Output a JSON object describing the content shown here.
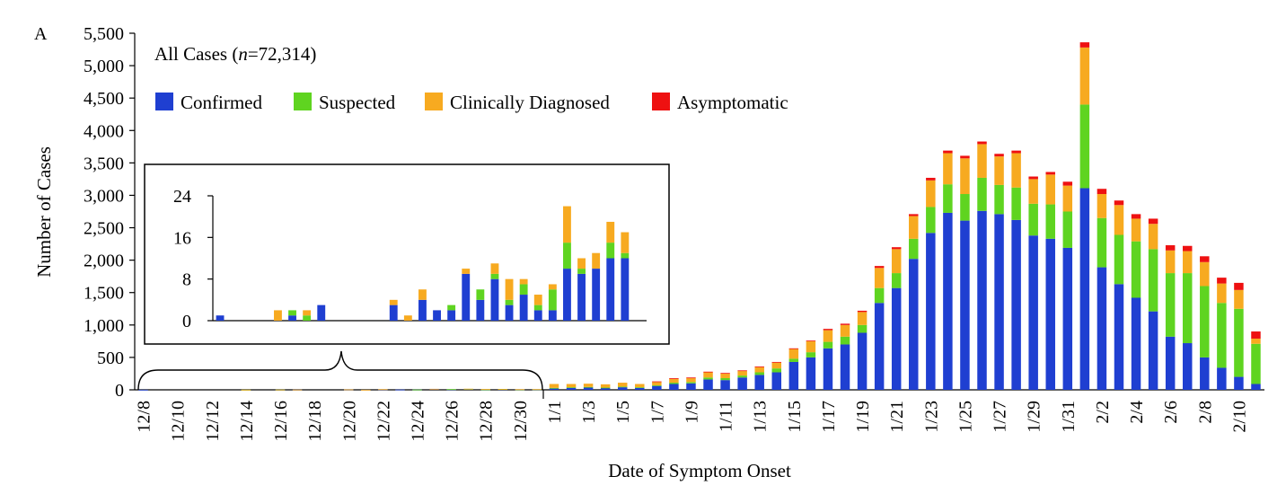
{
  "panel_label": "A",
  "annotation": {
    "prefix": "All Cases (",
    "n_italic": "n",
    "suffix": "=72,314)"
  },
  "colors": {
    "Confirmed": "#1f3fd1",
    "Suspected": "#5fd420",
    "Clinically Diagnosed": "#f7aa20",
    "Asymptomatic": "#ee1111"
  },
  "chart_data": [
    {
      "type": "bar",
      "stacked": true,
      "xlabel": "Date of Symptom Onset",
      "ylabel": "Number of Cases",
      "ylim": [
        0,
        5500
      ],
      "yticks": [
        "0",
        "500",
        "1,000",
        "1,500",
        "2,000",
        "2,500",
        "3,000",
        "3,500",
        "4,000",
        "4,500",
        "5,000",
        "5,500"
      ],
      "legend": {
        "placement": "top-left",
        "entries": [
          "Confirmed",
          "Suspected",
          "Clinically Diagnosed",
          "Asymptomatic"
        ]
      },
      "categories": [
        "12/8",
        "12/9",
        "12/10",
        "12/11",
        "12/12",
        "12/13",
        "12/14",
        "12/15",
        "12/16",
        "12/17",
        "12/18",
        "12/19",
        "12/20",
        "12/21",
        "12/22",
        "12/23",
        "12/24",
        "12/25",
        "12/26",
        "12/27",
        "12/28",
        "12/29",
        "12/30",
        "12/31",
        "1/1",
        "1/2",
        "1/3",
        "1/4",
        "1/5",
        "1/6",
        "1/7",
        "1/8",
        "1/9",
        "1/10",
        "1/11",
        "1/12",
        "1/13",
        "1/14",
        "1/15",
        "1/16",
        "1/17",
        "1/18",
        "1/19",
        "1/20",
        "1/21",
        "1/22",
        "1/23",
        "1/24",
        "1/25",
        "1/26",
        "1/27",
        "1/28",
        "1/29",
        "1/30",
        "1/31",
        "2/1",
        "2/2",
        "2/3",
        "2/4",
        "2/5",
        "2/6",
        "2/7",
        "2/8",
        "2/9",
        "2/10",
        "2/11"
      ],
      "tick_labels": [
        "12/8",
        "12/10",
        "12/12",
        "12/14",
        "12/16",
        "12/18",
        "12/20",
        "12/22",
        "12/24",
        "12/26",
        "12/28",
        "12/30",
        "1/1",
        "1/3",
        "1/5",
        "1/7",
        "1/9",
        "1/11",
        "1/13",
        "1/15",
        "1/17",
        "1/19",
        "1/21",
        "1/23",
        "1/25",
        "1/27",
        "1/29",
        "1/31",
        "2/2",
        "2/4",
        "2/6",
        "2/8",
        "2/10"
      ],
      "series": [
        {
          "name": "Confirmed",
          "values": [
            1,
            0,
            0,
            0,
            0,
            0,
            0,
            0,
            1,
            2,
            0,
            0,
            5,
            0,
            7,
            4,
            3,
            14,
            7,
            13,
            5,
            9,
            4,
            4,
            20,
            30,
            35,
            30,
            40,
            30,
            60,
            90,
            100,
            160,
            150,
            190,
            230,
            270,
            430,
            500,
            640,
            700,
            880,
            1340,
            1570,
            2020,
            2420,
            2730,
            2610,
            2760,
            2710,
            2620,
            2380,
            2330,
            2190,
            3110,
            1890,
            1630,
            1420,
            1210,
            820,
            720,
            500,
            340,
            200,
            90
          ]
        },
        {
          "name": "Suspected",
          "values": [
            0,
            0,
            0,
            0,
            0,
            0,
            1,
            0,
            1,
            0,
            0,
            0,
            0,
            0,
            0,
            0,
            1,
            0,
            3,
            1,
            1,
            2,
            2,
            4,
            10,
            10,
            10,
            5,
            10,
            10,
            10,
            20,
            20,
            30,
            30,
            30,
            40,
            60,
            50,
            80,
            100,
            120,
            120,
            230,
            230,
            310,
            400,
            440,
            410,
            510,
            450,
            500,
            490,
            530,
            560,
            1290,
            760,
            760,
            870,
            960,
            980,
            1080,
            1100,
            1000,
            1050,
            620
          ]
        },
        {
          "name": "Clinically Diagnosed",
          "values": [
            0,
            0,
            0,
            0,
            0,
            0,
            1,
            0,
            1,
            1,
            0,
            0,
            1,
            1,
            2,
            0,
            0,
            1,
            0,
            3,
            6,
            2,
            3,
            1,
            60,
            50,
            50,
            50,
            60,
            50,
            50,
            60,
            60,
            80,
            70,
            70,
            80,
            90,
            150,
            170,
            180,
            180,
            200,
            310,
            370,
            350,
            410,
            480,
            550,
            520,
            440,
            530,
            380,
            460,
            400,
            880,
            370,
            460,
            350,
            390,
            350,
            340,
            370,
            300,
            290,
            80
          ]
        },
        {
          "name": "Asymptomatic",
          "values": [
            0,
            0,
            0,
            0,
            0,
            0,
            0,
            0,
            0,
            0,
            0,
            0,
            0,
            0,
            0,
            0,
            0,
            0,
            0,
            0,
            0,
            0,
            0,
            0,
            0,
            0,
            0,
            0,
            0,
            0,
            10,
            10,
            10,
            10,
            10,
            10,
            10,
            10,
            10,
            10,
            20,
            20,
            20,
            30,
            30,
            30,
            40,
            40,
            40,
            40,
            40,
            40,
            40,
            40,
            60,
            80,
            80,
            70,
            70,
            80,
            80,
            80,
            90,
            90,
            110,
            110
          ]
        }
      ]
    },
    {
      "type": "bar",
      "stacked": true,
      "inset": true,
      "ylim": [
        0,
        24
      ],
      "yticks": [
        "0",
        "8",
        "16",
        "24"
      ],
      "categories": [
        "12/8",
        "12/9",
        "12/10",
        "12/11",
        "12/12",
        "12/13",
        "12/14",
        "12/15",
        "12/16",
        "12/17",
        "12/18",
        "12/19",
        "12/20",
        "12/21",
        "12/22",
        "12/23",
        "12/24",
        "12/25",
        "12/26",
        "12/27",
        "12/28",
        "12/29",
        "12/30",
        "12/31",
        "1/1",
        "1/2",
        "1/3",
        "1/4",
        "1/5",
        "1/6"
      ],
      "series": [
        {
          "name": "Confirmed",
          "values": [
            1,
            0,
            0,
            0,
            0,
            1,
            0,
            3,
            0,
            0,
            0,
            0,
            3,
            0,
            4,
            2,
            2,
            9,
            4,
            8,
            3,
            5,
            2,
            2,
            10,
            9,
            10,
            12,
            12,
            0
          ]
        },
        {
          "name": "Suspected",
          "values": [
            0,
            0,
            0,
            0,
            0,
            1,
            1,
            0,
            0,
            0,
            0,
            0,
            0,
            0,
            0,
            0,
            1,
            0,
            2,
            1,
            1,
            2,
            1,
            4,
            5,
            1,
            0,
            3,
            1,
            0
          ]
        },
        {
          "name": "Clinically Diagnosed",
          "values": [
            0,
            0,
            0,
            0,
            2,
            0,
            1,
            0,
            0,
            0,
            0,
            0,
            1,
            1,
            2,
            0,
            0,
            1,
            0,
            2,
            4,
            1,
            2,
            1,
            7,
            2,
            3,
            4,
            4,
            0
          ]
        },
        {
          "name": "Asymptomatic",
          "values": [
            0,
            0,
            0,
            0,
            0,
            0,
            0,
            0,
            0,
            0,
            0,
            0,
            0,
            0,
            0,
            0,
            0,
            0,
            0,
            0,
            0,
            0,
            0,
            0,
            0,
            0,
            0,
            0,
            0,
            0
          ]
        }
      ]
    }
  ]
}
